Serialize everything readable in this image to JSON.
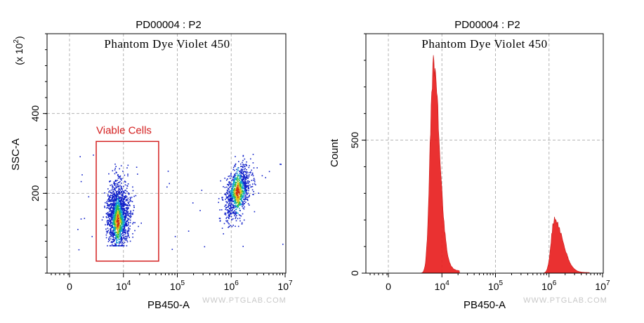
{
  "chart_data": [
    {
      "type": "scatter",
      "title": "PD00004 : P2",
      "annotation": "Phantom Dye Violet 450",
      "xlabel": "PB450-A",
      "ylabel": "SSC-A",
      "y_multiplier": "(x 10",
      "y_multiplier_exp": "2",
      "y_multiplier_close": ")",
      "x_scale": "biexponential",
      "x_ticks": [
        {
          "value": 0,
          "base": "0",
          "exp": ""
        },
        {
          "value": 10000,
          "base": "10",
          "exp": "4"
        },
        {
          "value": 100000,
          "base": "10",
          "exp": "5"
        },
        {
          "value": 1000000,
          "base": "10",
          "exp": "6"
        },
        {
          "value": 10000000,
          "base": "10",
          "exp": "7"
        }
      ],
      "y_ticks": [
        200,
        400
      ],
      "ylim": [
        0,
        600
      ],
      "grid": true,
      "gate": {
        "label": "Viable Cells",
        "color": "#d42020",
        "x_range": [
          1500,
          45000
        ],
        "y_range": [
          30,
          330
        ]
      },
      "populations": [
        {
          "x_center": 7500,
          "y_center": 130,
          "x_spread_decades": 0.12,
          "y_spread": 55,
          "share": 0.62
        },
        {
          "x_center": 1300000,
          "y_center": 205,
          "x_spread_decades": 0.12,
          "y_spread": 52,
          "share": 0.38
        }
      ],
      "watermark": "WWW.PTGLAB.COM"
    },
    {
      "type": "area",
      "title": "PD00004 : P2",
      "annotation": "Phantom Dye Violet 450",
      "xlabel": "PB450-A",
      "ylabel": "Count",
      "x_scale": "biexponential",
      "x_ticks": [
        {
          "value": 0,
          "base": "0",
          "exp": ""
        },
        {
          "value": 10000,
          "base": "10",
          "exp": "4"
        },
        {
          "value": 100000,
          "base": "10",
          "exp": "5"
        },
        {
          "value": 1000000,
          "base": "10",
          "exp": "6"
        },
        {
          "value": 10000000,
          "base": "10",
          "exp": "7"
        }
      ],
      "y_ticks": [
        0,
        500
      ],
      "ylim": [
        0,
        900
      ],
      "grid": true,
      "fill_color": "#e82020",
      "peaks": [
        {
          "x": 6500,
          "count": 760
        },
        {
          "x": 1250000,
          "count": 195
        }
      ],
      "watermark": "WWW.PTGLAB.COM"
    }
  ]
}
